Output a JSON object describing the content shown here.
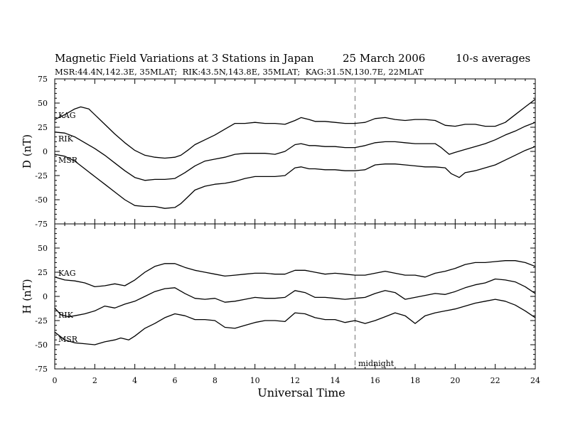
{
  "title": {
    "main": "Magnetic Field Variations at 3 Stations in Japan",
    "date": "25  March    2006",
    "averages": "10-s averages"
  },
  "subtitle": "MSR:44.4N,142.3E, 35MLAT;  RIK:43.5N,143.8E, 35MLAT;  KAG:31.5N,130.7E, 22MLAT",
  "xlabel": "Universal Time",
  "annotation": "midnight",
  "chart_data": [
    {
      "type": "line",
      "ylabel": "D (nT)",
      "ylim": [
        -75,
        75
      ],
      "xlim": [
        0,
        24
      ],
      "yticks": [
        -75,
        -50,
        -25,
        0,
        25,
        50,
        75
      ],
      "xticks": [
        0,
        2,
        4,
        6,
        8,
        10,
        12,
        14,
        16,
        18,
        20,
        22,
        24
      ],
      "midnight_ut": 15,
      "series": [
        {
          "name": "KAG",
          "x": [
            0,
            0.5,
            1,
            1.3,
            1.7,
            2,
            2.5,
            3,
            3.5,
            4,
            4.5,
            5,
            5.5,
            6,
            6.3,
            6.7,
            7,
            7.5,
            8,
            8.5,
            9,
            9.5,
            10,
            10.5,
            11,
            11.5,
            12,
            12.3,
            12.7,
            13,
            13.5,
            14,
            14.5,
            15,
            15.5,
            16,
            16.5,
            17,
            17.5,
            18,
            18.5,
            19,
            19.5,
            20,
            20.5,
            21,
            21.5,
            22,
            22.5,
            23,
            23.5,
            24
          ],
          "y": [
            33,
            38,
            44,
            46,
            44,
            38,
            28,
            18,
            9,
            1,
            -4,
            -6,
            -7,
            -6,
            -4,
            2,
            7,
            12,
            17,
            23,
            29,
            29,
            30,
            29,
            29,
            28,
            32,
            35,
            33,
            31,
            31,
            30,
            29,
            29,
            30,
            34,
            35,
            33,
            32,
            33,
            33,
            32,
            27,
            26,
            28,
            28,
            26,
            26,
            30,
            38,
            46,
            54
          ]
        },
        {
          "name": "RIK",
          "x": [
            0,
            0.5,
            1,
            1.5,
            2,
            2.5,
            3,
            3.5,
            4,
            4.5,
            5,
            5.5,
            6,
            6.5,
            7,
            7.5,
            8,
            8.5,
            9,
            9.5,
            10,
            10.5,
            11,
            11.5,
            12,
            12.3,
            12.7,
            13,
            13.5,
            14,
            14.5,
            15,
            15.5,
            16,
            16.5,
            17,
            17.5,
            18,
            18.5,
            19,
            19.3,
            19.7,
            20,
            20.5,
            21,
            21.5,
            22,
            22.5,
            23,
            23.5,
            24
          ],
          "y": [
            20,
            19,
            15,
            9,
            3,
            -4,
            -12,
            -20,
            -27,
            -30,
            -29,
            -29,
            -28,
            -22,
            -15,
            -10,
            -8,
            -6,
            -3,
            -2,
            -2,
            -2,
            -3,
            0,
            7,
            8,
            6,
            6,
            5,
            5,
            4,
            4,
            6,
            9,
            10,
            10,
            9,
            8,
            8,
            8,
            4,
            -3,
            -1,
            2,
            5,
            8,
            12,
            17,
            21,
            26,
            30
          ]
        },
        {
          "name": "MSR",
          "x": [
            0,
            0.5,
            1,
            1.5,
            2,
            2.5,
            3,
            3.5,
            4,
            4.5,
            5,
            5.5,
            6,
            6.3,
            6.7,
            7,
            7.5,
            8,
            8.5,
            9,
            9.5,
            10,
            10.5,
            11,
            11.5,
            12,
            12.3,
            12.7,
            13,
            13.5,
            14,
            14.5,
            15,
            15.5,
            16,
            16.5,
            17,
            17.5,
            18,
            18.5,
            19,
            19.5,
            19.8,
            20.2,
            20.5,
            21,
            21.5,
            22,
            22.5,
            23,
            23.5,
            24
          ],
          "y": [
            -3,
            -5,
            -10,
            -18,
            -26,
            -34,
            -42,
            -50,
            -56,
            -57,
            -57,
            -59,
            -58,
            -54,
            -46,
            -40,
            -36,
            -34,
            -33,
            -31,
            -28,
            -26,
            -26,
            -26,
            -25,
            -17,
            -16,
            -18,
            -18,
            -19,
            -19,
            -20,
            -20,
            -19,
            -14,
            -13,
            -13,
            -14,
            -15,
            -16,
            -16,
            -17,
            -23,
            -27,
            -22,
            -20,
            -17,
            -14,
            -9,
            -4,
            1,
            5
          ]
        }
      ]
    },
    {
      "type": "line",
      "ylabel": "H (nT)",
      "ylim": [
        -75,
        75
      ],
      "xlim": [
        0,
        24
      ],
      "yticks": [
        -75,
        -50,
        -25,
        0,
        25,
        50,
        75
      ],
      "xticks": [
        0,
        2,
        4,
        6,
        8,
        10,
        12,
        14,
        16,
        18,
        20,
        22,
        24
      ],
      "midnight_ut": 15,
      "series": [
        {
          "name": "KAG",
          "x": [
            0,
            0.5,
            1,
            1.5,
            2,
            2.5,
            3,
            3.5,
            4,
            4.5,
            5,
            5.5,
            6,
            6.5,
            7,
            7.5,
            8,
            8.5,
            9,
            9.5,
            10,
            10.5,
            11,
            11.5,
            12,
            12.5,
            13,
            13.5,
            14,
            14.5,
            15,
            15.5,
            16,
            16.5,
            17,
            17.5,
            18,
            18.5,
            19,
            19.5,
            20,
            20.5,
            21,
            21.5,
            22,
            22.5,
            23,
            23.5,
            24
          ],
          "y": [
            20,
            17,
            16,
            14,
            10,
            11,
            13,
            11,
            17,
            25,
            31,
            34,
            34,
            30,
            27,
            25,
            23,
            21,
            22,
            23,
            24,
            24,
            23,
            23,
            27,
            27,
            25,
            23,
            24,
            23,
            22,
            22,
            24,
            26,
            24,
            22,
            22,
            20,
            24,
            26,
            29,
            33,
            35,
            35,
            36,
            37,
            37,
            35,
            31
          ]
        },
        {
          "name": "RIK",
          "x": [
            0,
            0.3,
            0.7,
            1,
            1.5,
            2,
            2.5,
            3,
            3.5,
            4,
            4.5,
            5,
            5.5,
            6,
            6.5,
            7,
            7.5,
            8,
            8.5,
            9,
            9.5,
            10,
            10.5,
            11,
            11.5,
            12,
            12.5,
            13,
            13.5,
            14,
            14.5,
            15,
            15.5,
            16,
            16.5,
            17,
            17.5,
            18,
            18.5,
            19,
            19.5,
            20,
            20.5,
            21,
            21.5,
            22,
            22.5,
            23,
            23.5,
            24
          ],
          "y": [
            -12,
            -19,
            -21,
            -20,
            -18,
            -15,
            -10,
            -12,
            -8,
            -5,
            0,
            5,
            8,
            9,
            3,
            -2,
            -3,
            -2,
            -6,
            -5,
            -3,
            -1,
            -2,
            -2,
            -1,
            6,
            4,
            -1,
            -1,
            -2,
            -3,
            -2,
            -1,
            3,
            6,
            4,
            -3,
            -1,
            1,
            3,
            2,
            5,
            9,
            12,
            14,
            18,
            17,
            15,
            10,
            3
          ]
        },
        {
          "name": "MSR",
          "x": [
            0,
            0.5,
            1,
            1.5,
            2,
            2.5,
            3,
            3.3,
            3.7,
            4,
            4.5,
            5,
            5.5,
            6,
            6.5,
            7,
            7.5,
            8,
            8.5,
            9,
            9.5,
            10,
            10.5,
            11,
            11.5,
            12,
            12.5,
            13,
            13.5,
            14,
            14.5,
            15,
            15.5,
            16,
            16.5,
            17,
            17.5,
            18,
            18.5,
            19,
            19.5,
            20,
            20.5,
            21,
            21.5,
            22,
            22.5,
            23,
            23.5,
            24
          ],
          "y": [
            -37,
            -45,
            -48,
            -49,
            -50,
            -47,
            -45,
            -43,
            -45,
            -41,
            -33,
            -28,
            -22,
            -18,
            -20,
            -24,
            -24,
            -25,
            -32,
            -33,
            -30,
            -27,
            -25,
            -25,
            -26,
            -17,
            -18,
            -22,
            -24,
            -24,
            -27,
            -25,
            -28,
            -25,
            -21,
            -17,
            -20,
            -28,
            -20,
            -17,
            -15,
            -13,
            -10,
            -7,
            -5,
            -3,
            -5,
            -9,
            -15,
            -22
          ]
        }
      ]
    }
  ]
}
